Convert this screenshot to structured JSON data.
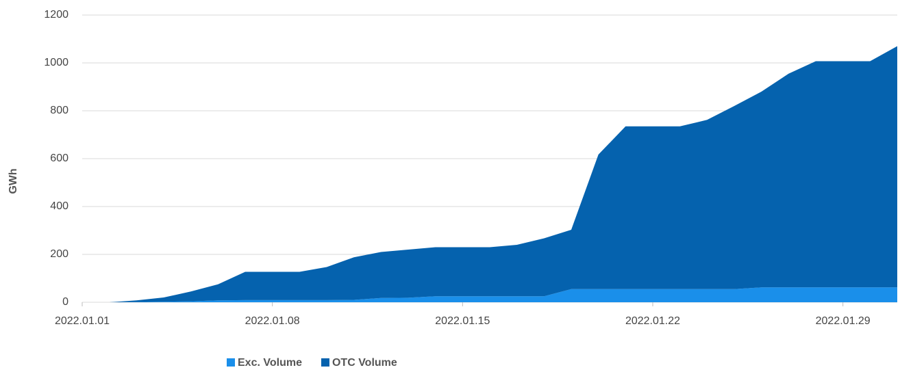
{
  "chart_data": {
    "type": "stacked_area",
    "categories": [
      "2022.01.01",
      null,
      null,
      null,
      null,
      null,
      null,
      "2022.01.08",
      null,
      null,
      null,
      null,
      null,
      null,
      "2022.01.15",
      null,
      null,
      null,
      null,
      null,
      null,
      "2022.01.22",
      null,
      null,
      null,
      null,
      null,
      null,
      "2022.01.29",
      null,
      null
    ],
    "series": [
      {
        "name": "Exc. Volume",
        "color": "#1a8fea",
        "values": [
          0,
          0,
          1,
          2,
          4,
          8,
          9,
          9,
          9,
          9,
          10,
          18,
          19,
          25,
          25,
          25,
          25,
          25,
          55,
          55,
          55,
          55,
          55,
          55,
          55,
          62,
          62,
          62,
          62,
          62,
          62
        ]
      },
      {
        "name": "OTC Volume",
        "color": "#0562ae",
        "values": [
          0,
          0,
          7,
          18,
          41,
          67,
          118,
          118,
          118,
          138,
          178,
          192,
          201,
          205,
          205,
          205,
          215,
          242,
          248,
          562,
          680,
          680,
          680,
          707,
          765,
          818,
          893,
          945,
          945,
          945,
          1008
        ]
      }
    ],
    "y_label": "GWh",
    "ylim": [
      0,
      1200
    ],
    "yticks": [
      0,
      200,
      400,
      600,
      800,
      1000,
      1200
    ],
    "grid": true,
    "legend": "bottom"
  }
}
